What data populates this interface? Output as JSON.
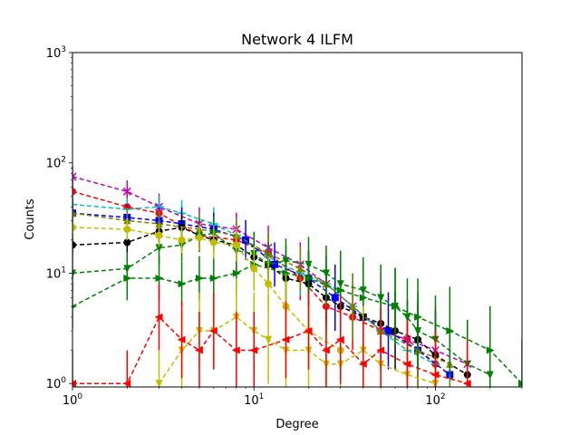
{
  "chart_data": {
    "type": "line",
    "title": "Network 4 ILFM",
    "xlabel": "Degree",
    "ylabel": "Counts",
    "xscale": "log",
    "yscale": "log",
    "xlim": [
      1,
      300
    ],
    "ylim": [
      0.93,
      1000
    ],
    "x_ticks": [
      {
        "value": 1,
        "base": "10",
        "exp": "0"
      },
      {
        "value": 10,
        "base": "10",
        "exp": "1"
      },
      {
        "value": 100,
        "base": "10",
        "exp": "2"
      }
    ],
    "y_ticks": [
      {
        "value": 1,
        "base": "10",
        "exp": "0"
      },
      {
        "value": 10,
        "base": "10",
        "exp": "1"
      },
      {
        "value": 100,
        "base": "10",
        "exp": "2"
      },
      {
        "value": 1000,
        "base": "10",
        "exp": "3"
      }
    ],
    "grid": false,
    "legend": "none",
    "series": [
      {
        "color": "#ff0000",
        "marker": "circle",
        "x": [
          1,
          2,
          3,
          5,
          8,
          12,
          18,
          25,
          35,
          50,
          70,
          100
        ],
        "y": [
          55,
          40,
          35,
          22,
          20,
          15,
          9,
          5,
          4,
          3,
          2.5,
          1.5
        ],
        "err": [
          0.15,
          0.15,
          0.15,
          0.15,
          0.15,
          0.18,
          0.2,
          0.25,
          0.3,
          0.3,
          0.35,
          0.4
        ]
      },
      {
        "color": "#c000c0",
        "marker": "x",
        "x": [
          1,
          2,
          3,
          5,
          8,
          12,
          18,
          25,
          35,
          50,
          70,
          100,
          150
        ],
        "y": [
          75,
          55,
          40,
          28,
          25,
          17,
          12,
          8,
          5,
          3,
          2.5,
          2,
          1.5
        ],
        "err": [
          0.1,
          0.1,
          0.12,
          0.15,
          0.15,
          0.2,
          0.2,
          0.25,
          0.3,
          0.35,
          0.35,
          0.4,
          0.4
        ]
      },
      {
        "color": "#00bfbf",
        "marker": "plus",
        "x": [
          1,
          2,
          3,
          4,
          6,
          8,
          12,
          18,
          25,
          35,
          50,
          70,
          100
        ],
        "y": [
          42,
          38,
          40,
          35,
          28,
          22,
          14,
          10,
          8,
          5,
          3,
          2,
          1.5
        ],
        "err": [
          0.1,
          0.1,
          0.1,
          0.12,
          0.15,
          0.15,
          0.2,
          0.2,
          0.25,
          0.3,
          0.35,
          0.4,
          0.4
        ]
      },
      {
        "color": "#0000ff",
        "marker": "square",
        "x": [
          1,
          2,
          3,
          4,
          6,
          9,
          13,
          20,
          28,
          40,
          55,
          80,
          120
        ],
        "y": [
          35,
          32,
          30,
          28,
          25,
          20,
          12,
          9,
          6,
          4,
          3,
          2,
          1.2
        ],
        "err": [
          0.12,
          0.12,
          0.12,
          0.15,
          0.15,
          0.18,
          0.2,
          0.25,
          0.3,
          0.3,
          0.35,
          0.4,
          0.4
        ]
      },
      {
        "color": "#000000",
        "marker": "circle",
        "x": [
          1,
          2,
          3,
          4,
          5,
          6,
          8,
          10,
          12,
          15,
          20,
          25,
          30,
          40,
          50,
          60,
          80,
          100,
          150
        ],
        "y": [
          18,
          19,
          24,
          26,
          22,
          20,
          18,
          14,
          12,
          9,
          8,
          6,
          5,
          4,
          3.5,
          3,
          2.5,
          1.8,
          1.2
        ],
        "err": [
          0.1,
          0.1,
          0.1,
          0.12,
          0.12,
          0.12,
          0.15,
          0.15,
          0.18,
          0.2,
          0.2,
          0.25,
          0.25,
          0.3,
          0.3,
          0.35,
          0.35,
          0.4,
          0.4
        ]
      },
      {
        "color": "#808000",
        "marker": "triangle",
        "x": [
          1,
          2,
          3,
          5,
          8,
          12,
          18,
          25,
          35,
          50,
          80,
          120
        ],
        "y": [
          35,
          30,
          28,
          25,
          22,
          15,
          11,
          8,
          5,
          3,
          2,
          1.5
        ],
        "err": [
          0.1,
          0.12,
          0.12,
          0.15,
          0.15,
          0.2,
          0.2,
          0.25,
          0.3,
          0.35,
          0.4,
          0.4
        ]
      },
      {
        "color": "#008000",
        "marker": "triangle-down",
        "x": [
          1,
          2,
          3,
          4,
          5,
          6,
          8,
          10,
          12,
          15,
          20,
          25,
          30,
          40,
          50,
          60,
          70,
          80,
          100,
          150,
          200
        ],
        "y": [
          10,
          11,
          17,
          18,
          22,
          23,
          16,
          15,
          12,
          13,
          12,
          10,
          8,
          7,
          6,
          5,
          4,
          3,
          2.5,
          1.5,
          1.2
        ],
        "err": [
          0.15,
          0.15,
          0.15,
          0.15,
          0.15,
          0.15,
          0.18,
          0.2,
          0.2,
          0.2,
          0.25,
          0.25,
          0.3,
          0.3,
          0.3,
          0.35,
          0.35,
          0.35,
          0.4,
          0.4,
          0.4
        ]
      },
      {
        "color": "#008000",
        "marker": "triangle-right",
        "x": [
          1,
          2,
          3,
          4,
          5,
          6,
          8,
          10,
          15,
          20,
          30,
          40,
          60,
          80,
          120,
          200,
          300
        ],
        "y": [
          5,
          9,
          9,
          8,
          9,
          9,
          10,
          12,
          10,
          9,
          7,
          6,
          5,
          4,
          3,
          2,
          1
        ],
        "err": [
          0.2,
          0.2,
          0.2,
          0.2,
          0.2,
          0.2,
          0.2,
          0.2,
          0.25,
          0.25,
          0.3,
          0.3,
          0.35,
          0.35,
          0.4,
          0.4,
          0.4
        ]
      },
      {
        "color": "#bfbf00",
        "marker": "circle",
        "x": [
          1,
          2,
          3,
          4,
          5,
          6,
          8,
          10,
          12,
          15,
          20,
          30
        ],
        "y": [
          26,
          25,
          22,
          20,
          21,
          19,
          18,
          11,
          8,
          5,
          3,
          2
        ],
        "err": [
          0.1,
          0.1,
          0.1,
          0.12,
          0.12,
          0.15,
          0.15,
          0.2,
          0.25,
          0.3,
          0.35,
          0.4
        ]
      },
      {
        "color": "#bfbf00",
        "marker": "triangle-down",
        "x": [
          3,
          4,
          5,
          6,
          8,
          10,
          12,
          15,
          20,
          25,
          30,
          40,
          50,
          70,
          100
        ],
        "y": [
          1,
          2,
          3,
          3,
          4,
          3,
          2.5,
          2,
          2,
          1.5,
          1.5,
          2,
          1.5,
          1.2,
          1
        ],
        "err": [
          0.3,
          0.35,
          0.35,
          0.35,
          0.35,
          0.35,
          0.4,
          0.4,
          0.4,
          0.4,
          0.4,
          0.4,
          0.4,
          0.4,
          0.4
        ]
      },
      {
        "color": "#ff0000",
        "marker": "triangle-left",
        "x": [
          1,
          2,
          3,
          4,
          5,
          6,
          8,
          10,
          15,
          20,
          25,
          30,
          40,
          50,
          70,
          100,
          150
        ],
        "y": [
          1,
          1,
          4,
          2.5,
          2,
          3,
          2,
          2,
          2.5,
          3,
          2,
          2.5,
          1.5,
          2,
          1.5,
          1.2,
          1
        ],
        "err": [
          0.3,
          0.3,
          0.3,
          0.35,
          0.35,
          0.35,
          0.35,
          0.35,
          0.35,
          0.35,
          0.4,
          0.4,
          0.4,
          0.4,
          0.4,
          0.4,
          0.4
        ]
      }
    ]
  }
}
